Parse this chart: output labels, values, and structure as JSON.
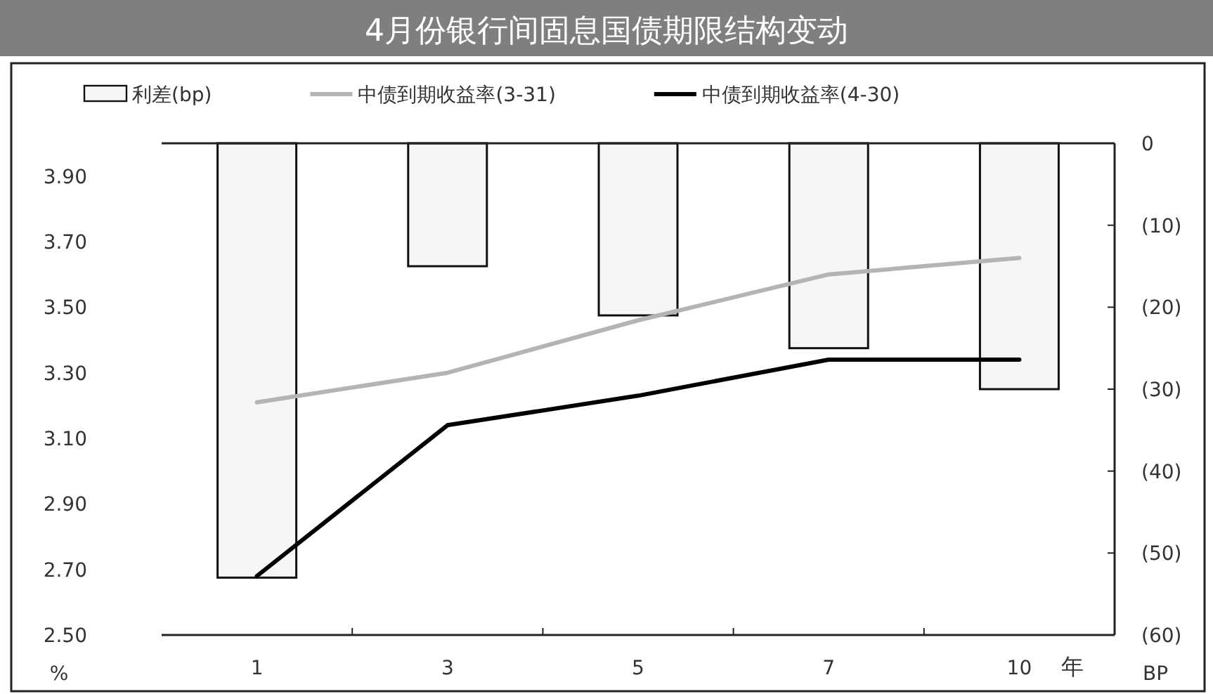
{
  "chart_data": {
    "type": "line",
    "title": "4月份银行间固息国债期限结构变动",
    "xlabel": "年",
    "ylabel": "%",
    "y2label": "BP",
    "categories": [
      "1",
      "3",
      "5",
      "7",
      "10"
    ],
    "series": [
      {
        "name": "利差(bp)",
        "type": "bar",
        "axis": "y2",
        "color": "#f6f6f6",
        "values": [
          -53,
          -15,
          -21,
          -25,
          -30
        ]
      },
      {
        "name": "中债到期收益率(3-31)",
        "color": "#b4b4b4",
        "values": [
          3.21,
          3.3,
          3.46,
          3.6,
          3.65
        ]
      },
      {
        "name": "中债到期收益率(4-30)",
        "color": "#000000",
        "values": [
          2.68,
          3.14,
          3.23,
          3.34,
          3.34
        ]
      }
    ],
    "ylim": [
      2.5,
      4.0
    ],
    "yticks": [
      {
        "value": 2.5,
        "label": "2.50"
      },
      {
        "value": 2.7,
        "label": "2.70"
      },
      {
        "value": 2.9,
        "label": "2.90"
      },
      {
        "value": 3.1,
        "label": "3.10"
      },
      {
        "value": 3.3,
        "label": "3.30"
      },
      {
        "value": 3.5,
        "label": "3.50"
      },
      {
        "value": 3.7,
        "label": "3.70"
      },
      {
        "value": 3.9,
        "label": "3.90"
      }
    ],
    "y2lim": [
      -60,
      0
    ],
    "y2ticks": [
      {
        "value": -60,
        "label": "(60)"
      },
      {
        "value": -50,
        "label": "(50)"
      },
      {
        "value": -40,
        "label": "(40)"
      },
      {
        "value": -30,
        "label": "(30)"
      },
      {
        "value": -20,
        "label": "(20)"
      },
      {
        "value": -10,
        "label": "(10)"
      },
      0
    ],
    "legend": "top"
  }
}
